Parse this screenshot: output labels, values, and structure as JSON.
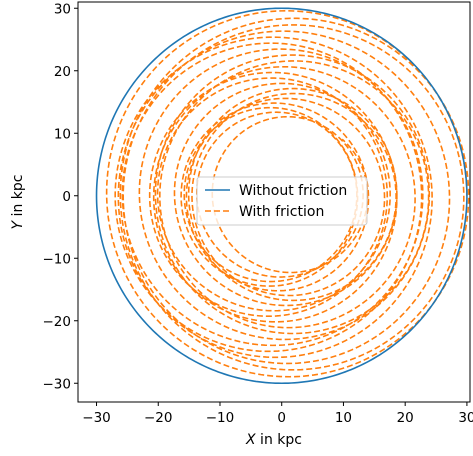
{
  "chart_data": {
    "type": "line",
    "title": "",
    "xlabel": {
      "var": "X",
      "unit": " in kpc"
    },
    "ylabel": {
      "var": "Y",
      "unit": " in kpc"
    },
    "xlim": [
      -33,
      30.5
    ],
    "ylim": [
      -33,
      31
    ],
    "xticks": [
      -30,
      -20,
      -10,
      0,
      10,
      20,
      30
    ],
    "yticks": [
      -30,
      -20,
      -10,
      0,
      10,
      20,
      30
    ],
    "xtick_labels": [
      "−30",
      "−20",
      "−10",
      "0",
      "10",
      "20",
      "30"
    ],
    "ytick_labels": [
      "−30",
      "−20",
      "−10",
      "0",
      "10",
      "20",
      "30"
    ],
    "grid": false,
    "legend_position": "center",
    "series": [
      {
        "name": "Without friction",
        "color": "#1f77b4",
        "style": "solid",
        "orbit": {
          "radius": 30,
          "center": [
            0,
            0
          ]
        }
      },
      {
        "name": "With friction",
        "color": "#ff7f0e",
        "style": "dashed",
        "orbit": {
          "r_start": 30,
          "r_end": 12,
          "turns": 20,
          "x_offset_amplitude": 2,
          "phase_drift": 1.3
        }
      }
    ]
  }
}
